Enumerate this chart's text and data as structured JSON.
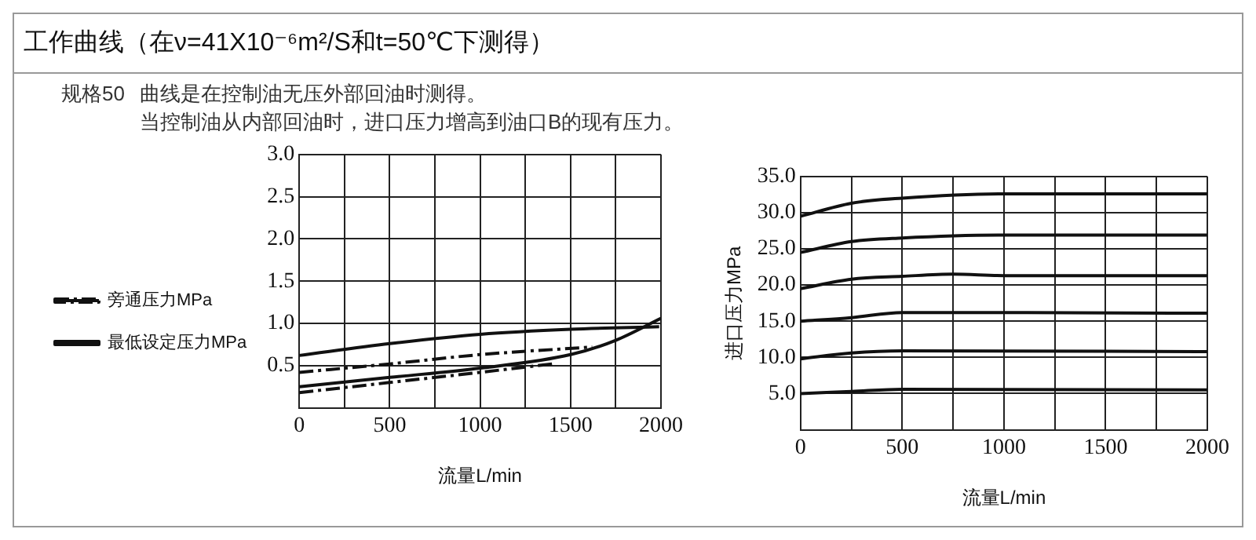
{
  "chart_data": [
    {
      "type": "line",
      "title": "工作曲线（在ν=41X10⁻⁶m²/S和t=50℃下测得）",
      "annotations": [
        "规格50",
        "曲线是在控制油无压外部回油时测得。",
        "当控制油从内部回油时，进口压力增高到油口B的现有压力。"
      ],
      "xlabel": "流量L/min",
      "xlim": [
        0,
        2000
      ],
      "xticks": [
        0,
        {
          "value": 250,
          "label": null
        },
        500,
        {
          "value": 750,
          "label": null
        },
        1000,
        {
          "value": 1250,
          "label": null
        },
        1500,
        {
          "value": 1750,
          "label": null
        },
        2000
      ],
      "ylim": [
        0,
        3
      ],
      "yticks": [
        {
          "value": 0.5,
          "label": "0.5"
        },
        {
          "value": 1,
          "label": "1.0"
        },
        {
          "value": 1.5,
          "label": "1.5"
        },
        {
          "value": 2,
          "label": "2.0"
        },
        {
          "value": 2.5,
          "label": "2.5"
        },
        {
          "value": 3,
          "label": "3.0"
        }
      ],
      "grid": true,
      "legend": "left",
      "marker": "none",
      "series": [
        {
          "name": "旁通压力MPa",
          "color": "#111111",
          "line_style": "dashed",
          "x": [
            0,
            500,
            1000,
            1620
          ],
          "values": [
            0.42,
            0.52,
            0.63,
            0.72
          ]
        },
        {
          "name": "最低设定压力MPa",
          "color": "#111111",
          "line_style": "solid",
          "x": [
            0,
            500,
            1000,
            1500,
            1990
          ],
          "values": [
            0.62,
            0.76,
            0.87,
            0.93,
            0.96
          ]
        },
        {
          "color": "#111111",
          "line_style": "dashed",
          "x": [
            0,
            500,
            1000,
            1400
          ],
          "values": [
            0.18,
            0.3,
            0.42,
            0.52
          ]
        },
        {
          "color": "#111111",
          "line_style": "solid",
          "x": [
            0,
            500,
            1000,
            1500,
            1750,
            2000
          ],
          "values": [
            0.25,
            0.36,
            0.47,
            0.63,
            0.8,
            1.06
          ]
        }
      ]
    },
    {
      "type": "line",
      "xlabel": "流量L/min",
      "ylabel": "进口压力MPa",
      "xlim": [
        0,
        2000
      ],
      "xticks": [
        0,
        {
          "value": 250,
          "label": null
        },
        500,
        {
          "value": 750,
          "label": null
        },
        1000,
        {
          "value": 1250,
          "label": null
        },
        1500,
        {
          "value": 1750,
          "label": null
        },
        2000
      ],
      "ylim": [
        0,
        35
      ],
      "yticks": [
        {
          "value": 5,
          "label": "5.0"
        },
        {
          "value": 10,
          "label": "10.0"
        },
        {
          "value": 15,
          "label": "15.0"
        },
        {
          "value": 20,
          "label": "20.0"
        },
        {
          "value": 25,
          "label": "25.0"
        },
        {
          "value": 30,
          "label": "30.0"
        },
        {
          "value": 35,
          "label": "35.0"
        }
      ],
      "grid": true,
      "marker": "none",
      "line_style": "solid",
      "series": [
        {
          "color": "#111111",
          "x": [
            0,
            250,
            500,
            1000,
            2000
          ],
          "values": [
            29.5,
            31.3,
            32,
            32.6,
            32.6
          ]
        },
        {
          "color": "#111111",
          "x": [
            0,
            250,
            500,
            1000,
            2000
          ],
          "values": [
            24.5,
            26,
            26.5,
            26.9,
            26.9
          ]
        },
        {
          "color": "#111111",
          "x": [
            0,
            250,
            500,
            750,
            1000,
            2000
          ],
          "values": [
            19.5,
            20.8,
            21.2,
            21.5,
            21.3,
            21.3
          ]
        },
        {
          "color": "#111111",
          "x": [
            0,
            250,
            500,
            1000,
            2000
          ],
          "values": [
            15,
            15.5,
            16.2,
            16.2,
            16.1
          ]
        },
        {
          "color": "#111111",
          "x": [
            0,
            250,
            500,
            2000
          ],
          "values": [
            9.8,
            10.6,
            10.9,
            10.8
          ]
        },
        {
          "color": "#111111",
          "x": [
            0,
            250,
            500,
            2000
          ],
          "values": [
            5,
            5.3,
            5.6,
            5.5
          ]
        }
      ]
    }
  ]
}
